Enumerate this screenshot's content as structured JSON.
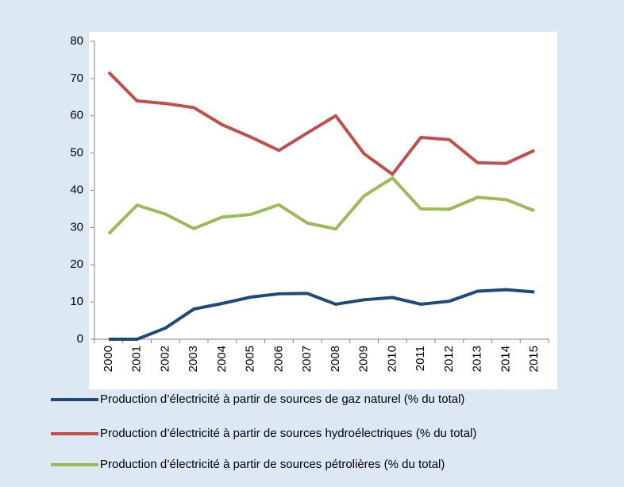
{
  "chart_data": {
    "type": "line",
    "categories": [
      "2000",
      "2001",
      "2002",
      "2003",
      "2004",
      "2005",
      "2006",
      "2007",
      "2008",
      "2009",
      "2010",
      "2011",
      "2012",
      "2013",
      "2014",
      "2015"
    ],
    "series": [
      {
        "name": "Production d’électricité à partir de sources de gaz naturel (% du total)",
        "color": "#1f497d",
        "values": [
          0,
          0,
          3,
          8.1,
          9.6,
          11.3,
          12.2,
          12.3,
          9.4,
          10.6,
          11.2,
          9.4,
          10.2,
          12.9,
          13.3,
          12.7
        ]
      },
      {
        "name": "Production d’électricité à partir de sources hydroélectriques (% du total)",
        "color": "#c0504d",
        "values": [
          71.7,
          64,
          63.3,
          62.2,
          57.6,
          54.3,
          50.7,
          55.4,
          60,
          49.8,
          44.3,
          54.2,
          53.6,
          47.4,
          47.2,
          50.7
        ]
      },
      {
        "name": "Production d’électricité à partir de sources pétrolières (% du total)",
        "color": "#9bbb59",
        "values": [
          28.3,
          36,
          33.6,
          29.7,
          32.8,
          33.5,
          36.1,
          31.2,
          29.6,
          38.5,
          43.3,
          35,
          34.9,
          38.1,
          37.5,
          34.5
        ]
      }
    ],
    "ylim": [
      0,
      80
    ],
    "yticks": [
      0,
      10,
      20,
      30,
      40,
      50,
      60,
      70,
      80
    ]
  }
}
